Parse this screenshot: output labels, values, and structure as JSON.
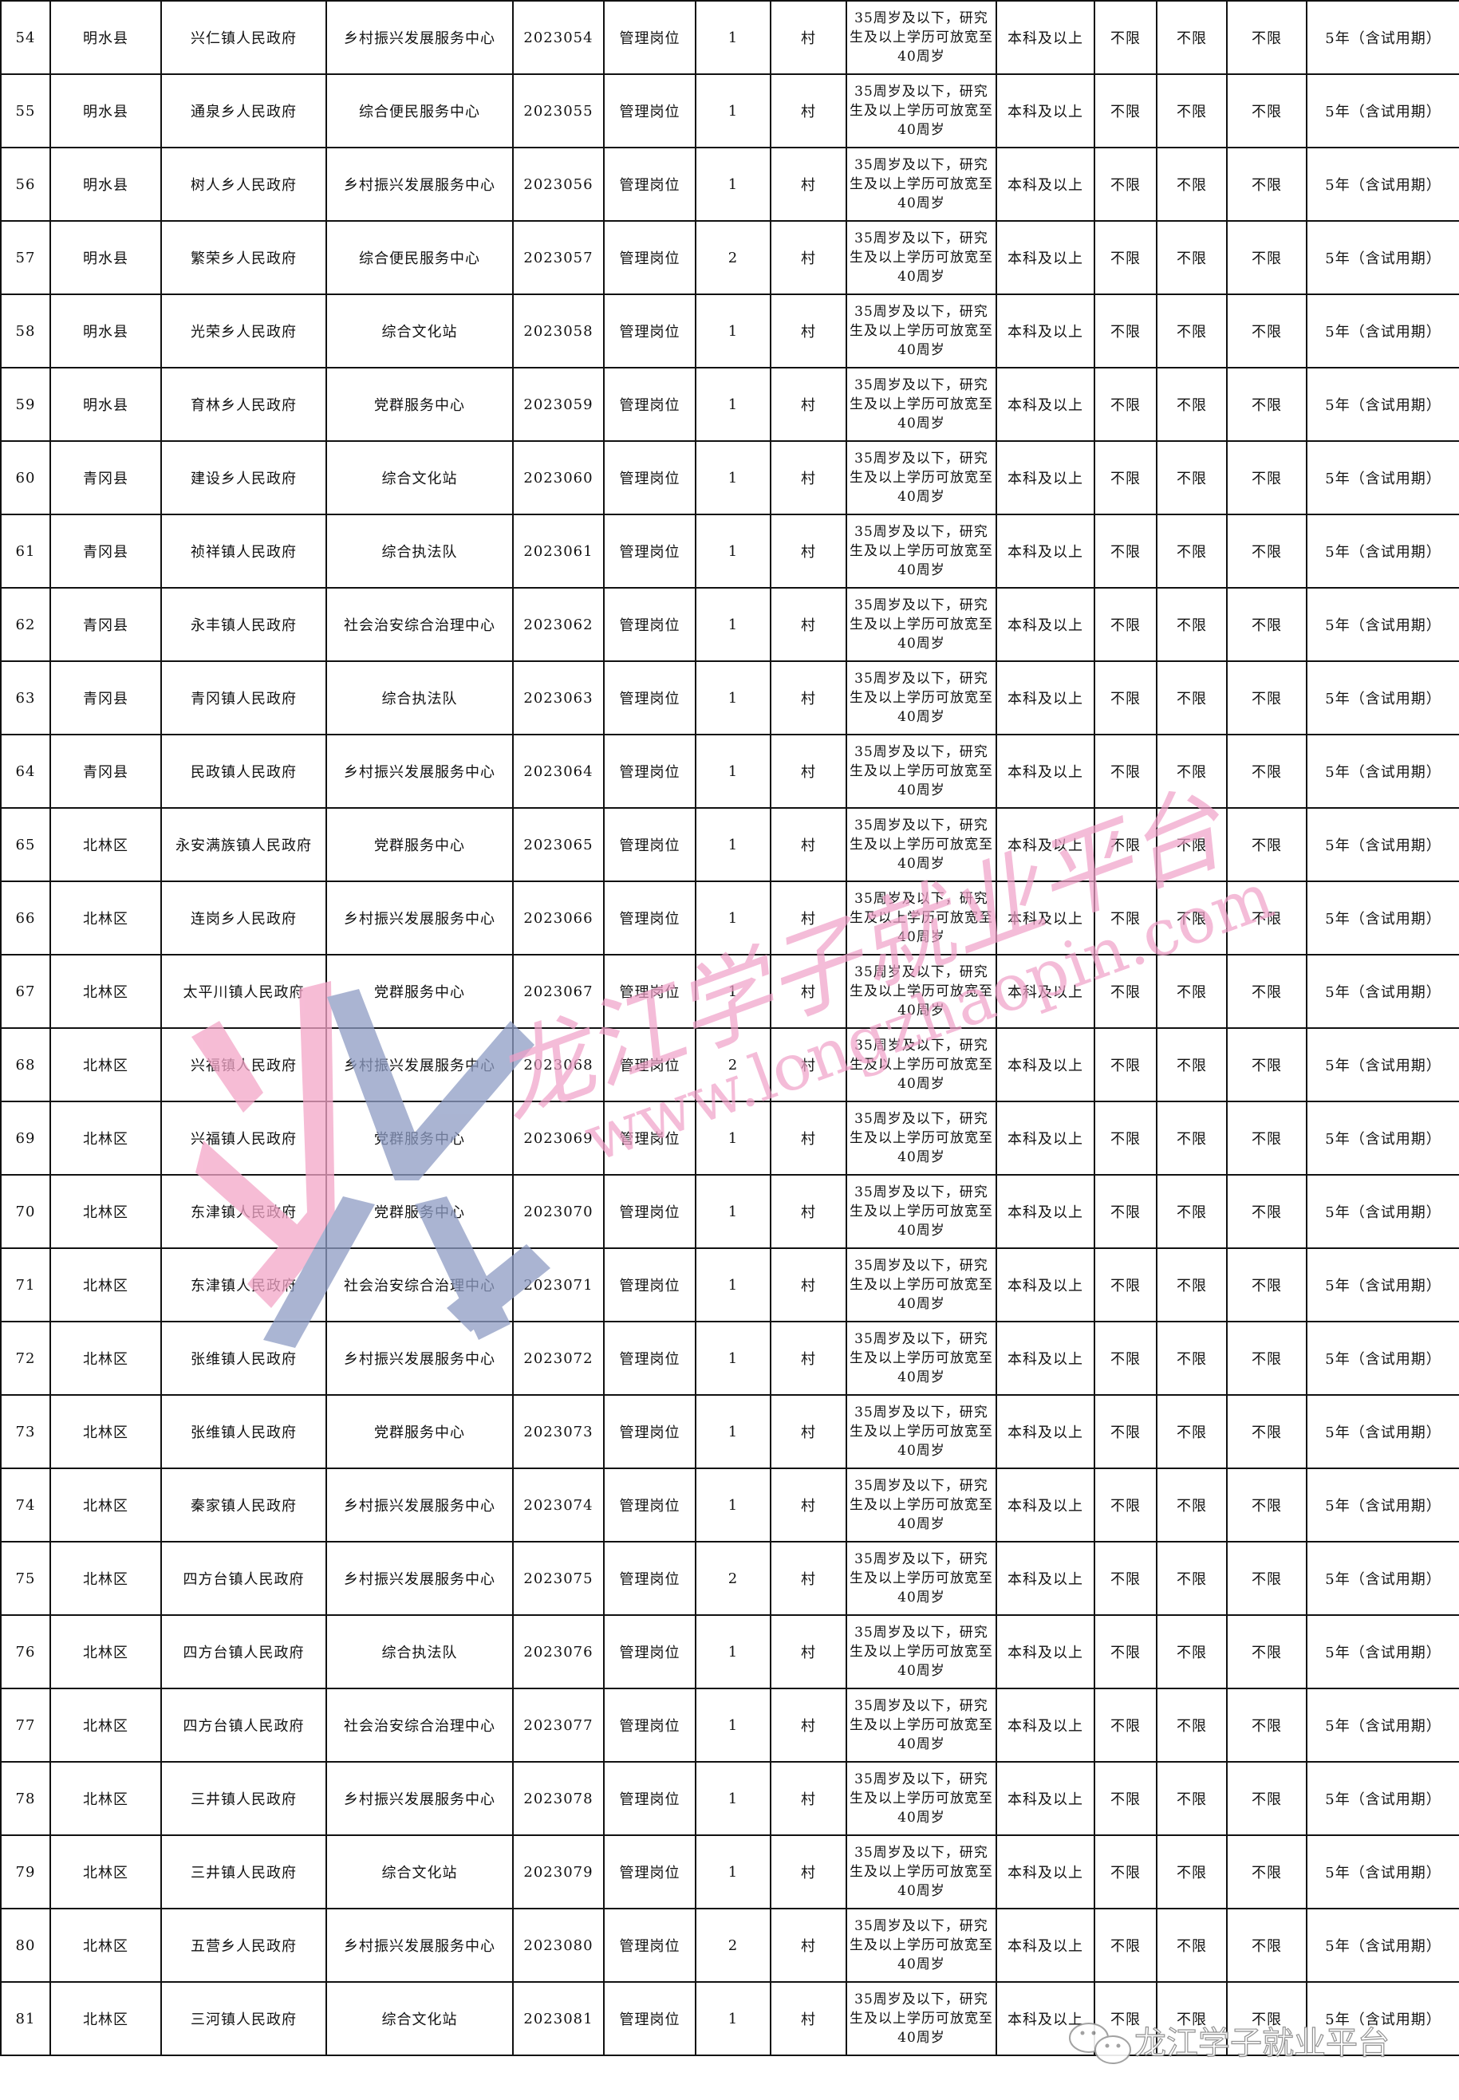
{
  "table": {
    "age_requirement": "35周岁及以下，研究生及以上学历可放宽至40周岁",
    "rows": [
      [
        "54",
        "明水县",
        "兴仁镇人民政府",
        "乡村振兴发展服务中心",
        "2023054",
        "管理岗位",
        "1",
        "村",
        "本科及以上",
        "不限",
        "不限",
        "不限",
        "5年（含试用期）"
      ],
      [
        "55",
        "明水县",
        "通泉乡人民政府",
        "综合便民服务中心",
        "2023055",
        "管理岗位",
        "1",
        "村",
        "本科及以上",
        "不限",
        "不限",
        "不限",
        "5年（含试用期）"
      ],
      [
        "56",
        "明水县",
        "树人乡人民政府",
        "乡村振兴发展服务中心",
        "2023056",
        "管理岗位",
        "1",
        "村",
        "本科及以上",
        "不限",
        "不限",
        "不限",
        "5年（含试用期）"
      ],
      [
        "57",
        "明水县",
        "繁荣乡人民政府",
        "综合便民服务中心",
        "2023057",
        "管理岗位",
        "2",
        "村",
        "本科及以上",
        "不限",
        "不限",
        "不限",
        "5年（含试用期）"
      ],
      [
        "58",
        "明水县",
        "光荣乡人民政府",
        "综合文化站",
        "2023058",
        "管理岗位",
        "1",
        "村",
        "本科及以上",
        "不限",
        "不限",
        "不限",
        "5年（含试用期）"
      ],
      [
        "59",
        "明水县",
        "育林乡人民政府",
        "党群服务中心",
        "2023059",
        "管理岗位",
        "1",
        "村",
        "本科及以上",
        "不限",
        "不限",
        "不限",
        "5年（含试用期）"
      ],
      [
        "60",
        "青冈县",
        "建设乡人民政府",
        "综合文化站",
        "2023060",
        "管理岗位",
        "1",
        "村",
        "本科及以上",
        "不限",
        "不限",
        "不限",
        "5年（含试用期）"
      ],
      [
        "61",
        "青冈县",
        "祯祥镇人民政府",
        "综合执法队",
        "2023061",
        "管理岗位",
        "1",
        "村",
        "本科及以上",
        "不限",
        "不限",
        "不限",
        "5年（含试用期）"
      ],
      [
        "62",
        "青冈县",
        "永丰镇人民政府",
        "社会治安综合治理中心",
        "2023062",
        "管理岗位",
        "1",
        "村",
        "本科及以上",
        "不限",
        "不限",
        "不限",
        "5年（含试用期）"
      ],
      [
        "63",
        "青冈县",
        "青冈镇人民政府",
        "综合执法队",
        "2023063",
        "管理岗位",
        "1",
        "村",
        "本科及以上",
        "不限",
        "不限",
        "不限",
        "5年（含试用期）"
      ],
      [
        "64",
        "青冈县",
        "民政镇人民政府",
        "乡村振兴发展服务中心",
        "2023064",
        "管理岗位",
        "1",
        "村",
        "本科及以上",
        "不限",
        "不限",
        "不限",
        "5年（含试用期）"
      ],
      [
        "65",
        "北林区",
        "永安满族镇人民政府",
        "党群服务中心",
        "2023065",
        "管理岗位",
        "1",
        "村",
        "本科及以上",
        "不限",
        "不限",
        "不限",
        "5年（含试用期）"
      ],
      [
        "66",
        "北林区",
        "连岗乡人民政府",
        "乡村振兴发展服务中心",
        "2023066",
        "管理岗位",
        "1",
        "村",
        "本科及以上",
        "不限",
        "不限",
        "不限",
        "5年（含试用期）"
      ],
      [
        "67",
        "北林区",
        "太平川镇人民政府",
        "党群服务中心",
        "2023067",
        "管理岗位",
        "1",
        "村",
        "本科及以上",
        "不限",
        "不限",
        "不限",
        "5年（含试用期）"
      ],
      [
        "68",
        "北林区",
        "兴福镇人民政府",
        "乡村振兴发展服务中心",
        "2023068",
        "管理岗位",
        "2",
        "村",
        "本科及以上",
        "不限",
        "不限",
        "不限",
        "5年（含试用期）"
      ],
      [
        "69",
        "北林区",
        "兴福镇人民政府",
        "党群服务中心",
        "2023069",
        "管理岗位",
        "1",
        "村",
        "本科及以上",
        "不限",
        "不限",
        "不限",
        "5年（含试用期）"
      ],
      [
        "70",
        "北林区",
        "东津镇人民政府",
        "党群服务中心",
        "2023070",
        "管理岗位",
        "1",
        "村",
        "本科及以上",
        "不限",
        "不限",
        "不限",
        "5年（含试用期）"
      ],
      [
        "71",
        "北林区",
        "东津镇人民政府",
        "社会治安综合治理中心",
        "2023071",
        "管理岗位",
        "1",
        "村",
        "本科及以上",
        "不限",
        "不限",
        "不限",
        "5年（含试用期）"
      ],
      [
        "72",
        "北林区",
        "张维镇人民政府",
        "乡村振兴发展服务中心",
        "2023072",
        "管理岗位",
        "1",
        "村",
        "本科及以上",
        "不限",
        "不限",
        "不限",
        "5年（含试用期）"
      ],
      [
        "73",
        "北林区",
        "张维镇人民政府",
        "党群服务中心",
        "2023073",
        "管理岗位",
        "1",
        "村",
        "本科及以上",
        "不限",
        "不限",
        "不限",
        "5年（含试用期）"
      ],
      [
        "74",
        "北林区",
        "秦家镇人民政府",
        "乡村振兴发展服务中心",
        "2023074",
        "管理岗位",
        "1",
        "村",
        "本科及以上",
        "不限",
        "不限",
        "不限",
        "5年（含试用期）"
      ],
      [
        "75",
        "北林区",
        "四方台镇人民政府",
        "乡村振兴发展服务中心",
        "2023075",
        "管理岗位",
        "2",
        "村",
        "本科及以上",
        "不限",
        "不限",
        "不限",
        "5年（含试用期）"
      ],
      [
        "76",
        "北林区",
        "四方台镇人民政府",
        "综合执法队",
        "2023076",
        "管理岗位",
        "1",
        "村",
        "本科及以上",
        "不限",
        "不限",
        "不限",
        "5年（含试用期）"
      ],
      [
        "77",
        "北林区",
        "四方台镇人民政府",
        "社会治安综合治理中心",
        "2023077",
        "管理岗位",
        "1",
        "村",
        "本科及以上",
        "不限",
        "不限",
        "不限",
        "5年（含试用期）"
      ],
      [
        "78",
        "北林区",
        "三井镇人民政府",
        "乡村振兴发展服务中心",
        "2023078",
        "管理岗位",
        "1",
        "村",
        "本科及以上",
        "不限",
        "不限",
        "不限",
        "5年（含试用期）"
      ],
      [
        "79",
        "北林区",
        "三井镇人民政府",
        "综合文化站",
        "2023079",
        "管理岗位",
        "1",
        "村",
        "本科及以上",
        "不限",
        "不限",
        "不限",
        "5年（含试用期）"
      ],
      [
        "80",
        "北林区",
        "五营乡人民政府",
        "乡村振兴发展服务中心",
        "2023080",
        "管理岗位",
        "2",
        "村",
        "本科及以上",
        "不限",
        "不限",
        "不限",
        "5年（含试用期）"
      ],
      [
        "81",
        "北林区",
        "三河镇人民政府",
        "综合文化站",
        "2023081",
        "管理岗位",
        "1",
        "村",
        "本科及以上",
        "不限",
        "不限",
        "不限",
        "5年（含试用期）"
      ]
    ]
  },
  "watermark": {
    "title": "龙江学子就业平台",
    "url": "www.longzhaopin.com",
    "colors": {
      "pink": "#f4a6c8",
      "blue": "#8e9cc4"
    }
  },
  "wechat_badge": {
    "icon": "wechat-icon",
    "label": "龙江学子就业平台"
  }
}
